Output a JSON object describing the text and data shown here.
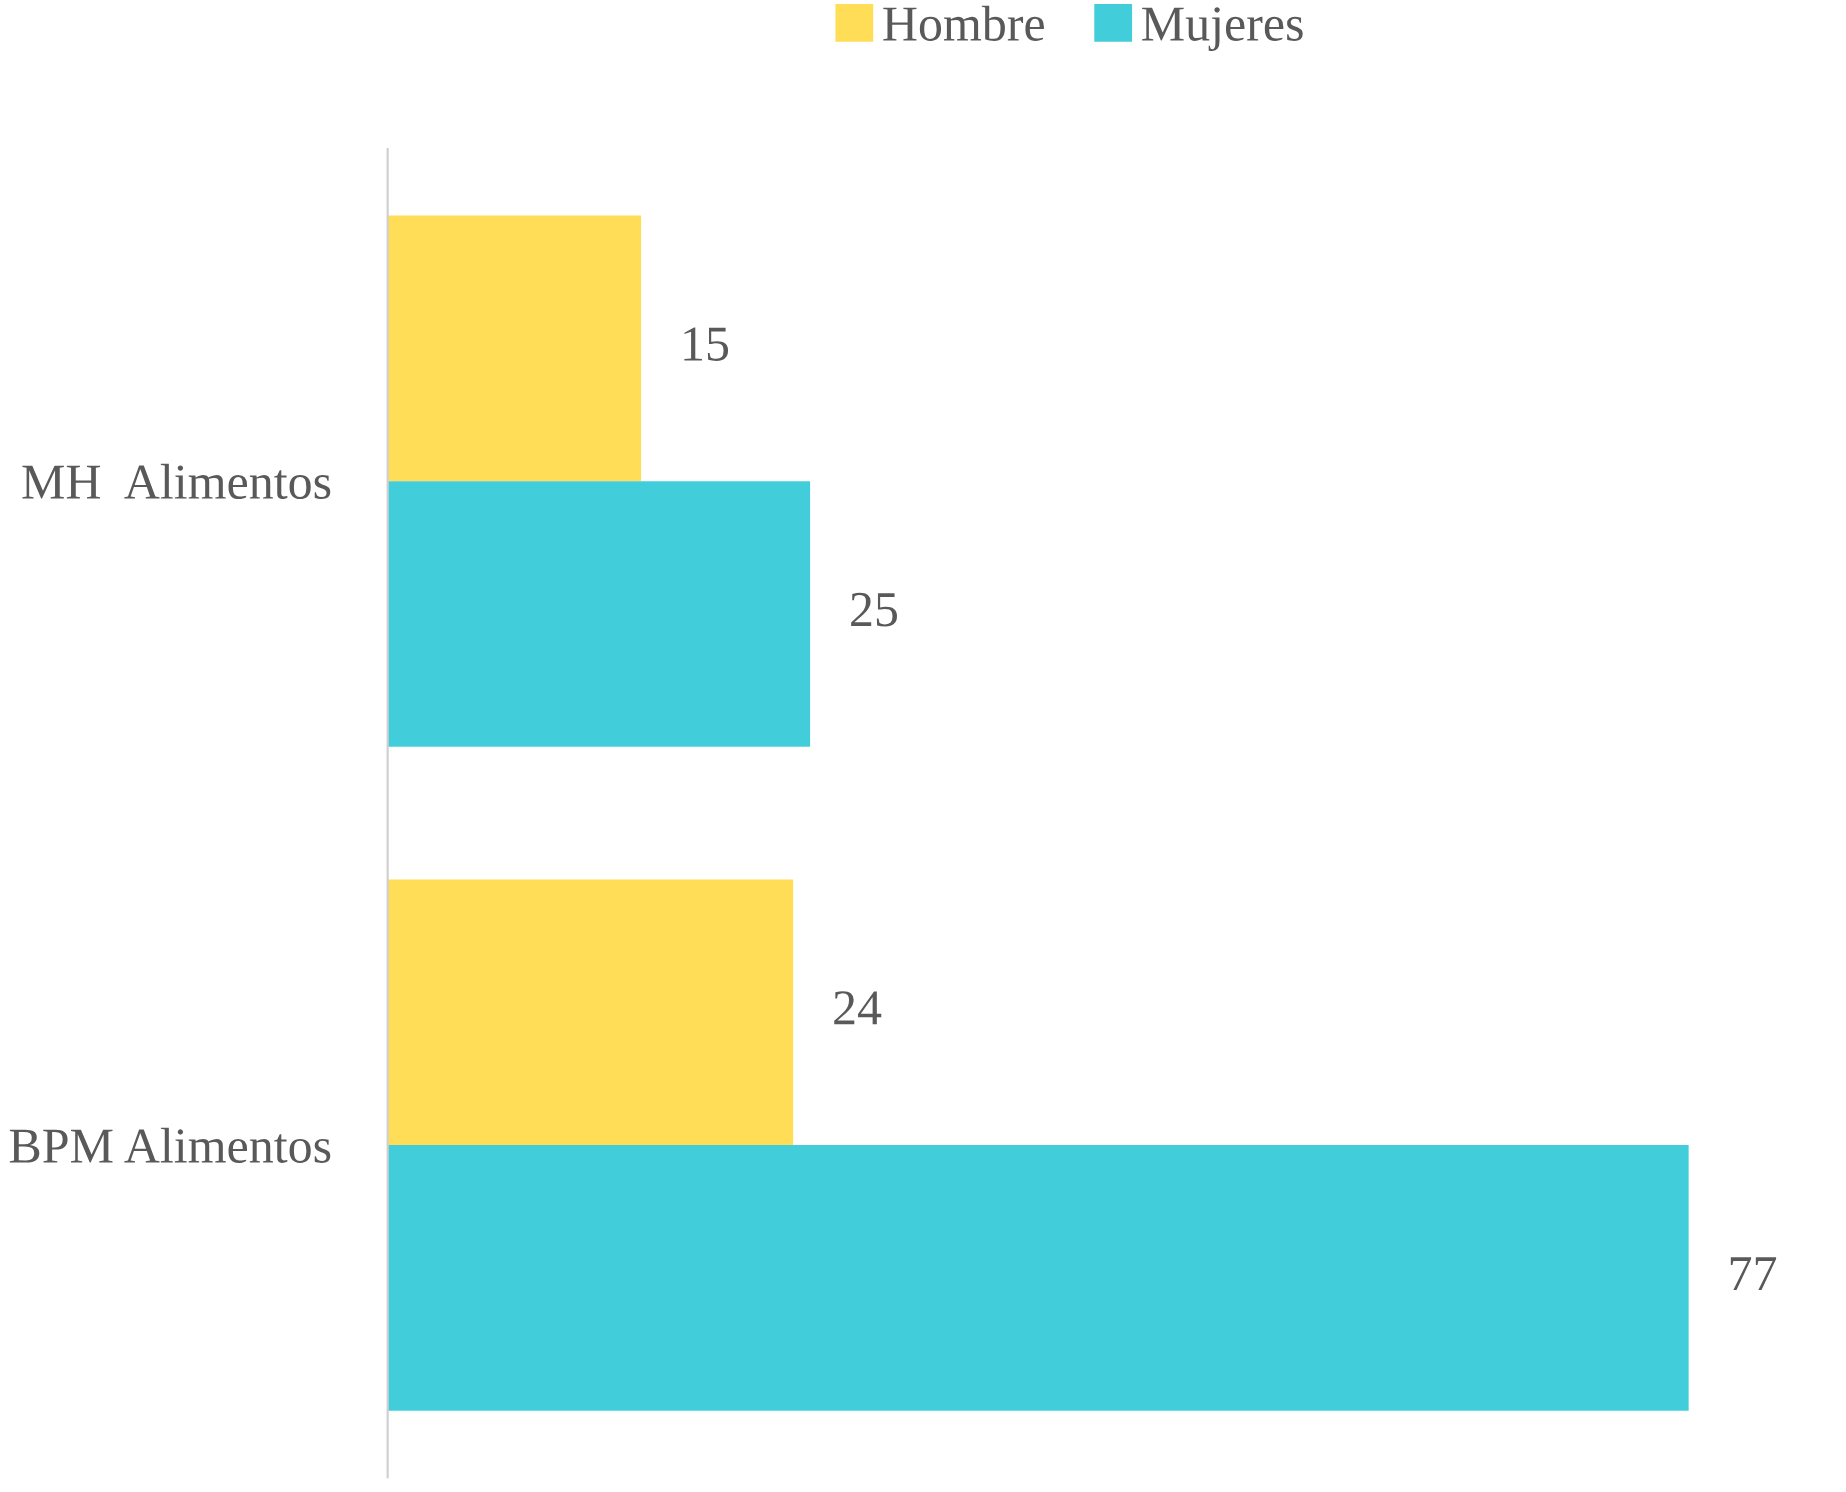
{
  "chart_data": {
    "type": "bar",
    "orientation": "horizontal",
    "categories": [
      "MH  Alimentos",
      "BPM Alimentos"
    ],
    "series": [
      {
        "name": "Hombre",
        "color": "#ffdd57",
        "values": [
          15,
          24
        ]
      },
      {
        "name": "Mujeres",
        "color": "#41ceda",
        "values": [
          25,
          77
        ]
      }
    ],
    "data_labels": true,
    "legend": "top",
    "grid": false,
    "tick_labels": "y"
  }
}
